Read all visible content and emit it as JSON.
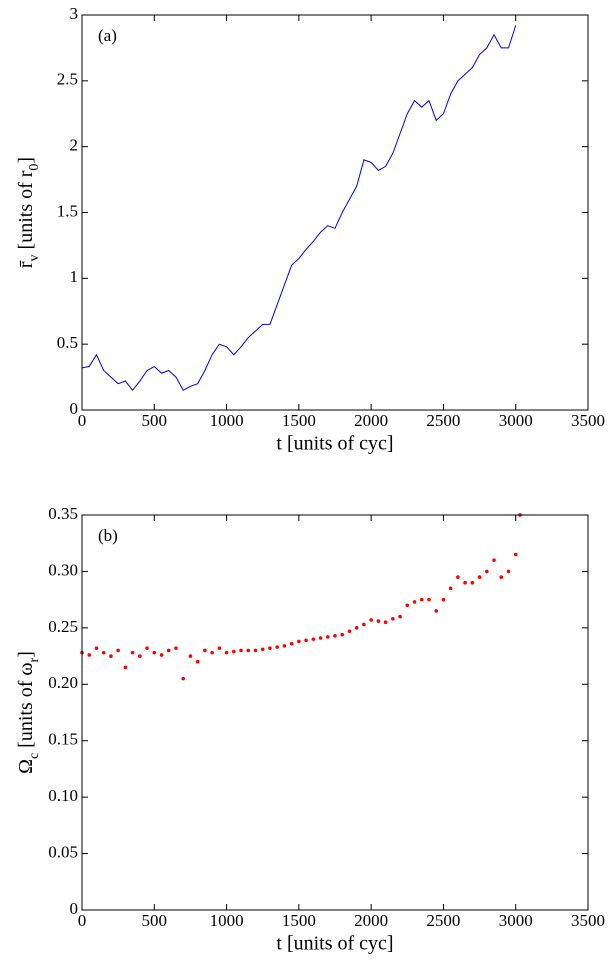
{
  "chart_data": [
    {
      "type": "line",
      "annotation": "(a)",
      "xlabel": "t [units of cyc]",
      "ylabel": [
        "r̄",
        "v",
        " [units of r",
        "0",
        "]"
      ],
      "xlim": [
        0,
        3500
      ],
      "xticks": [
        0,
        500,
        1000,
        1500,
        2000,
        2500,
        3000,
        3500
      ],
      "ylim": [
        0,
        3
      ],
      "yticks": [
        0,
        0.5,
        1,
        1.5,
        2,
        2.5,
        3
      ],
      "series": [
        {
          "color": "#0000ff",
          "x": [
            0,
            50,
            100,
            150,
            200,
            250,
            300,
            350,
            400,
            450,
            500,
            550,
            600,
            650,
            700,
            750,
            800,
            850,
            900,
            950,
            1000,
            1050,
            1100,
            1150,
            1200,
            1250,
            1300,
            1350,
            1400,
            1450,
            1500,
            1550,
            1600,
            1650,
            1700,
            1750,
            1800,
            1850,
            1900,
            1950,
            2000,
            2050,
            2100,
            2150,
            2200,
            2250,
            2300,
            2350,
            2400,
            2450,
            2500,
            2550,
            2600,
            2650,
            2700,
            2750,
            2800,
            2850,
            2900,
            2950,
            3000
          ],
          "values": [
            0.32,
            0.33,
            0.42,
            0.3,
            0.25,
            0.2,
            0.22,
            0.15,
            0.22,
            0.3,
            0.33,
            0.28,
            0.3,
            0.25,
            0.15,
            0.18,
            0.2,
            0.3,
            0.42,
            0.5,
            0.48,
            0.42,
            0.48,
            0.55,
            0.6,
            0.65,
            0.65,
            0.8,
            0.95,
            1.1,
            1.15,
            1.22,
            1.28,
            1.35,
            1.4,
            1.38,
            1.5,
            1.6,
            1.7,
            1.9,
            1.88,
            1.82,
            1.85,
            1.95,
            2.1,
            2.25,
            2.35,
            2.3,
            2.35,
            2.2,
            2.25,
            2.4,
            2.5,
            2.55,
            2.6,
            2.7,
            2.75,
            2.85,
            2.75,
            2.75,
            2.92
          ]
        }
      ]
    },
    {
      "type": "scatter",
      "annotation": "(b)",
      "xlabel": "t [units of cyc]",
      "ylabel": [
        "Ω",
        "c",
        " [units of ω",
        "r",
        "]"
      ],
      "xlim": [
        0,
        3500
      ],
      "xticks": [
        0,
        500,
        1000,
        1500,
        2000,
        2500,
        3000,
        3500
      ],
      "ylim": [
        0,
        0.35
      ],
      "yticks": [
        0,
        0.05,
        {
          "value": 0.1,
          "label": "0.10"
        },
        0.15,
        {
          "value": 0.2,
          "label": "0.20"
        },
        0.25,
        {
          "value": 0.3,
          "label": "0.30"
        },
        0.35
      ],
      "series": [
        {
          "color": "#ff0000",
          "x": [
            0,
            50,
            100,
            150,
            200,
            250,
            300,
            350,
            400,
            450,
            500,
            550,
            600,
            650,
            700,
            750,
            800,
            850,
            900,
            950,
            1000,
            1050,
            1100,
            1150,
            1200,
            1250,
            1300,
            1350,
            1400,
            1450,
            1500,
            1550,
            1600,
            1650,
            1700,
            1750,
            1800,
            1850,
            1900,
            1950,
            2000,
            2050,
            2100,
            2150,
            2200,
            2250,
            2300,
            2350,
            2400,
            2450,
            2500,
            2550,
            2600,
            2650,
            2700,
            2750,
            2800,
            2850,
            2900,
            2950,
            3000,
            3030
          ],
          "values": [
            0.228,
            0.226,
            0.232,
            0.228,
            0.225,
            0.23,
            0.215,
            0.228,
            0.225,
            0.232,
            0.228,
            0.226,
            0.23,
            0.232,
            0.205,
            0.225,
            0.22,
            0.23,
            0.228,
            0.232,
            0.228,
            0.229,
            0.23,
            0.23,
            0.23,
            0.231,
            0.232,
            0.233,
            0.234,
            0.236,
            0.238,
            0.239,
            0.24,
            0.241,
            0.242,
            0.243,
            0.244,
            0.247,
            0.25,
            0.253,
            0.257,
            0.256,
            0.255,
            0.258,
            0.26,
            0.27,
            0.273,
            0.275,
            0.275,
            0.265,
            0.275,
            0.285,
            0.295,
            0.29,
            0.29,
            0.295,
            0.3,
            0.31,
            0.295,
            0.3,
            0.315,
            0.35
          ]
        }
      ]
    }
  ]
}
